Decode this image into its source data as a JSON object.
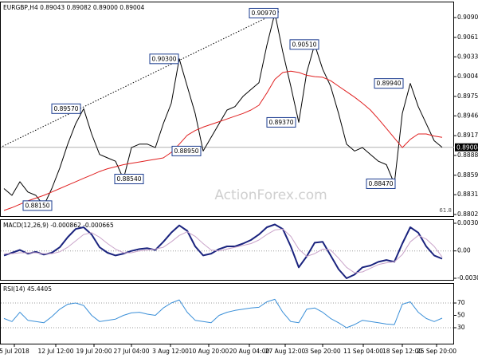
{
  "chart_data": [
    {
      "type": "line",
      "title": "EURGBP,H4  0.89043 0.89082 0.89000 0.89004",
      "xlim": [
        -0.5,
        56.5
      ],
      "ylim": [
        0.87985,
        0.91139
      ],
      "yticks": [
        0.90905,
        0.90615,
        {
          "value": 0.9033,
          "label": "0.90330"
        },
        {
          "value": 0.9004,
          "label": "0.90040"
        },
        {
          "value": 0.8975,
          "label": "0.89750"
        },
        0.89465,
        0.89175,
        0.88885,
        0.88595,
        {
          "value": 0.8831,
          "label": "0.88310"
        },
        {
          "value": 0.8802,
          "label": "0.88020"
        }
      ],
      "series": [
        {
          "color": "#000000",
          "values": [
            0.884,
            0.883,
            0.885,
            0.8835,
            0.883,
            0.8815,
            0.884,
            0.887,
            0.8905,
            0.8935,
            0.8957,
            0.892,
            0.889,
            0.8885,
            0.888,
            0.8854,
            0.89,
            0.8905,
            0.8905,
            0.89,
            0.8935,
            0.8965,
            0.903,
            0.899,
            0.895,
            0.8895,
            0.8915,
            0.8935,
            0.8955,
            0.896,
            0.8975,
            0.8985,
            0.8995,
            0.905,
            0.9097,
            0.904,
            0.899,
            0.8937,
            0.901,
            0.9051,
            0.9015,
            0.899,
            0.895,
            0.8905,
            0.8895,
            0.89,
            0.889,
            0.888,
            0.8875,
            0.8847,
            0.895,
            0.8994,
            0.896,
            0.8935,
            0.891,
            0.89004
          ]
        },
        {
          "color": "#e02020",
          "values": [
            0.8808,
            0.8812,
            0.8817,
            0.8822,
            0.8826,
            0.883,
            0.8835,
            0.884,
            0.8845,
            0.885,
            0.8855,
            0.886,
            0.8865,
            0.8869,
            0.8872,
            0.8875,
            0.8877,
            0.8879,
            0.8881,
            0.8883,
            0.8885,
            0.8893,
            0.8905,
            0.8918,
            0.8925,
            0.893,
            0.8934,
            0.8938,
            0.8942,
            0.8946,
            0.895,
            0.8955,
            0.8962,
            0.898,
            0.9,
            0.901,
            0.9012,
            0.901,
            0.9006,
            0.9004,
            0.9003,
            0.8998,
            0.899,
            0.8982,
            0.8974,
            0.8965,
            0.8955,
            0.8942,
            0.8928,
            0.8914,
            0.89,
            0.8912,
            0.892,
            0.892,
            0.8917,
            0.8915
          ]
        }
      ],
      "annotations": [
        {
          "value": 0.9097,
          "label": "0.90970",
          "x": 32.6
        },
        {
          "value": 0.903,
          "label": "0.90300",
          "x": 20.1
        },
        {
          "value": 0.8957,
          "label": "0.89570",
          "x": 7.8
        },
        {
          "value": 0.8895,
          "label": "0.88950",
          "x": 22.9
        },
        {
          "value": 0.8854,
          "label": "0.88540",
          "x": 15.7
        },
        {
          "value": 0.8815,
          "label": "0.88150",
          "x": 4.2
        },
        {
          "value": 0.8937,
          "label": "0.89370",
          "x": 34.8
        },
        {
          "value": 0.9051,
          "label": "0.90510",
          "x": 37.7
        },
        {
          "value": 0.8994,
          "label": "0.89940",
          "x": 48.3
        },
        {
          "value": 0.8847,
          "label": "0.88470",
          "x": 47.3
        }
      ],
      "trendline": {
        "color": "#000000",
        "x": [
          -0.5,
          34.5
        ],
        "values": [
          0.89,
          0.9099
        ]
      },
      "last_price": 0.89004,
      "fib_label": "61.8",
      "watermark": "ActionForex.com"
    },
    {
      "type": "line",
      "title": "MACD(12,26,9) -0.000862 -0.000665",
      "xlim": [
        -0.5,
        56.5
      ],
      "ylim": [
        -0.003263,
        0.003471
      ],
      "yticks": [
        0.003034,
        {
          "value": 0,
          "label": "0.00"
        },
        -0.003001
      ],
      "levels": [
        0
      ],
      "series": [
        {
          "color": "#1a237e",
          "width": 2,
          "values": [
            -0.0005,
            -0.0002,
            0.0001,
            -0.0003,
            -0.0001,
            -0.0004,
            -0.0002,
            0.0004,
            0.0015,
            0.0024,
            0.0026,
            0.0018,
            0.0004,
            -0.0002,
            -0.0005,
            -0.0003,
            0,
            0.0002,
            0.0003,
            0.0001,
            0.001,
            0.002,
            0.0028,
            0.0022,
            0.0005,
            -0.0005,
            -0.0003,
            0.0002,
            0.0005,
            0.0005,
            0.0008,
            0.0012,
            0.0018,
            0.0026,
            0.0029,
            0.0024,
            0.0005,
            -0.0018,
            -0.0006,
            0.0009,
            0.001,
            -0.0005,
            -0.002,
            -0.003,
            -0.0026,
            -0.0018,
            -0.0016,
            -0.0012,
            -0.001,
            -0.0012,
            0.0008,
            0.0026,
            0.002,
            0.0005,
            -0.0005,
            -0.000862
          ]
        },
        {
          "color": "#c9a3c9",
          "width": 1,
          "values": [
            -0.0003,
            -0.0003,
            -0.0002,
            -0.0002,
            -0.0002,
            -0.0003,
            -0.0003,
            -0.0001,
            0.0004,
            0.0011,
            0.0018,
            0.002,
            0.0015,
            0.0008,
            0.0002,
            -0.0002,
            -0.0002,
            0,
            0.0001,
            0.0002,
            0.0004,
            0.001,
            0.0017,
            0.0021,
            0.0016,
            0.0008,
            0.0001,
            0,
            0.0002,
            0.0004,
            0.0006,
            0.0008,
            0.0012,
            0.0018,
            0.0023,
            0.0024,
            0.0016,
            0.0002,
            -0.0006,
            -0.0003,
            0.0002,
            0.0001,
            -0.0008,
            -0.0018,
            -0.0024,
            -0.0023,
            -0.0019,
            -0.0015,
            -0.0013,
            -0.0012,
            -0.0004,
            0.001,
            0.0017,
            0.0013,
            0.0005,
            -0.000665
          ]
        }
      ]
    },
    {
      "type": "line",
      "title": "RSI(14) 45.4405",
      "xlim": [
        -0.5,
        56.5
      ],
      "ylim": [
        2.9,
        102.3
      ],
      "yticks": [
        70,
        50,
        30
      ],
      "levels": [
        70,
        30
      ],
      "series": [
        {
          "color": "#3a8fd8",
          "width": 1,
          "values": [
            45,
            40,
            55,
            42,
            40,
            38,
            48,
            60,
            68,
            70,
            66,
            50,
            40,
            42,
            44,
            50,
            54,
            55,
            52,
            50,
            62,
            70,
            75,
            55,
            42,
            40,
            38,
            50,
            55,
            58,
            60,
            62,
            63,
            72,
            76,
            55,
            40,
            38,
            60,
            62,
            55,
            45,
            38,
            30,
            35,
            42,
            40,
            38,
            36,
            35,
            68,
            72,
            55,
            45,
            40,
            45.4405
          ]
        }
      ],
      "xticks": [
        {
          "value": 1.3,
          "label": "5 Jul 2018"
        },
        {
          "value": 6.5,
          "label": "12 Jul 12:00"
        },
        {
          "value": 11.3,
          "label": "19 Jul 20:00"
        },
        {
          "value": 16.0,
          "label": "27 Jul 04:00"
        },
        {
          "value": 20.9,
          "label": "3 Aug 12:00"
        },
        {
          "value": 25.7,
          "label": "10 Aug 20:00"
        },
        {
          "value": 30.8,
          "label": "20 Aug 04:00"
        },
        {
          "value": 35.3,
          "label": "27 Aug 12:00"
        },
        {
          "value": 40.0,
          "label": "3 Sep 20:00"
        },
        {
          "value": 45.1,
          "label": "11 Sep 04:00"
        },
        {
          "value": 50.0,
          "label": "18 Sep 12:00"
        },
        {
          "value": 54.3,
          "label": "25 Sep 20:00"
        }
      ]
    }
  ]
}
